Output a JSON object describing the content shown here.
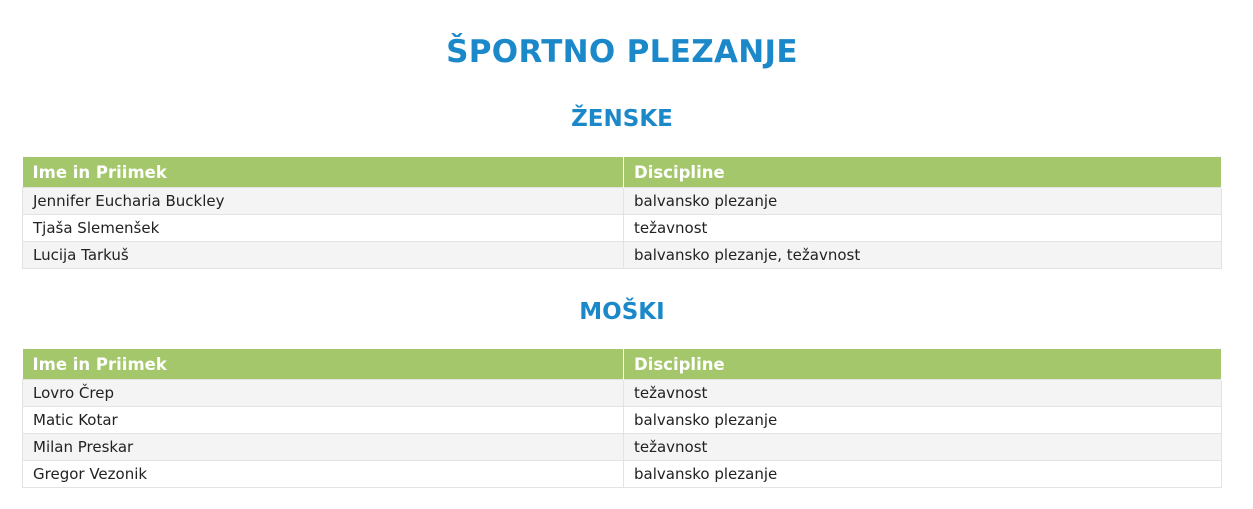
{
  "title": "ŠPORTNO PLEZANJE",
  "sections": [
    {
      "heading": "ŽENSKE",
      "columns": [
        "Ime in Priimek",
        "Discipline"
      ],
      "rows": [
        [
          "Jennifer Eucharia Buckley",
          "balvansko plezanje"
        ],
        [
          "Tjaša Slemenšek",
          "težavnost"
        ],
        [
          "Lucija Tarkuš",
          "balvansko plezanje, težavnost"
        ]
      ]
    },
    {
      "heading": "MOŠKI",
      "columns": [
        "Ime in Priimek",
        "Discipline"
      ],
      "rows": [
        [
          "Lovro Črep",
          "težavnost"
        ],
        [
          "Matic Kotar",
          "balvansko plezanje"
        ],
        [
          "Milan Preskar",
          "težavnost"
        ],
        [
          "Gregor Vezonik",
          "balvansko plezanje"
        ]
      ]
    }
  ],
  "colors": {
    "title": "#1a88c9",
    "table_header": "#a3c76a"
  }
}
